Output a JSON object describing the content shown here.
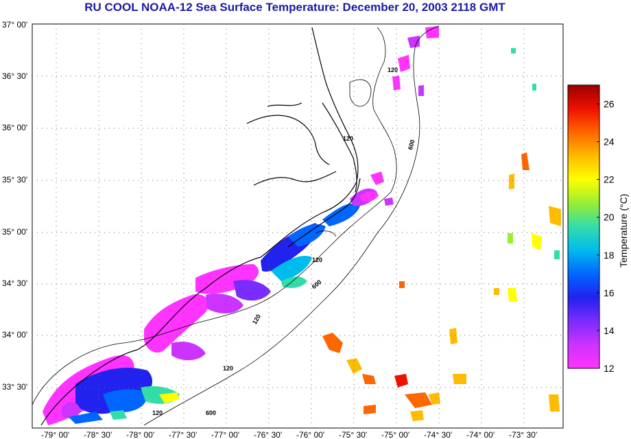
{
  "title": "RU COOL  NOAA-12  Sea Surface Temperature:  December 20, 2003 2118 GMT",
  "map": {
    "lat_labels": [
      "37° 00'",
      "36° 30'",
      "36° 00'",
      "35° 30'",
      "35° 00'",
      "34° 30'",
      "34° 00'",
      "33° 30'"
    ],
    "lon_labels": [
      "-79° 00'",
      "-78° 30'",
      "-78° 00'",
      "-77° 30'",
      "-77° 00'",
      "-76° 30'",
      "-76° 00'",
      "-75° 30'",
      "-75° 00'",
      "-74° 30'",
      "-74° 00'",
      "-73° 30'"
    ],
    "contour_labels": [
      "120",
      "120",
      "600",
      "120",
      "600",
      "120",
      "120",
      "600",
      "120"
    ]
  },
  "colorbar": {
    "label": "Temperature (°C)",
    "ticks": [
      "26",
      "24",
      "22",
      "20",
      "18",
      "16",
      "14",
      "12"
    ],
    "min": 12,
    "max": 27,
    "colors": [
      "#ff33ff",
      "#cc33ff",
      "#7a2cff",
      "#2222ee",
      "#0066ff",
      "#00bbee",
      "#33ddaa",
      "#99ee33",
      "#ffff00",
      "#ffbb00",
      "#ff6600",
      "#ee1100",
      "#990000"
    ]
  }
}
